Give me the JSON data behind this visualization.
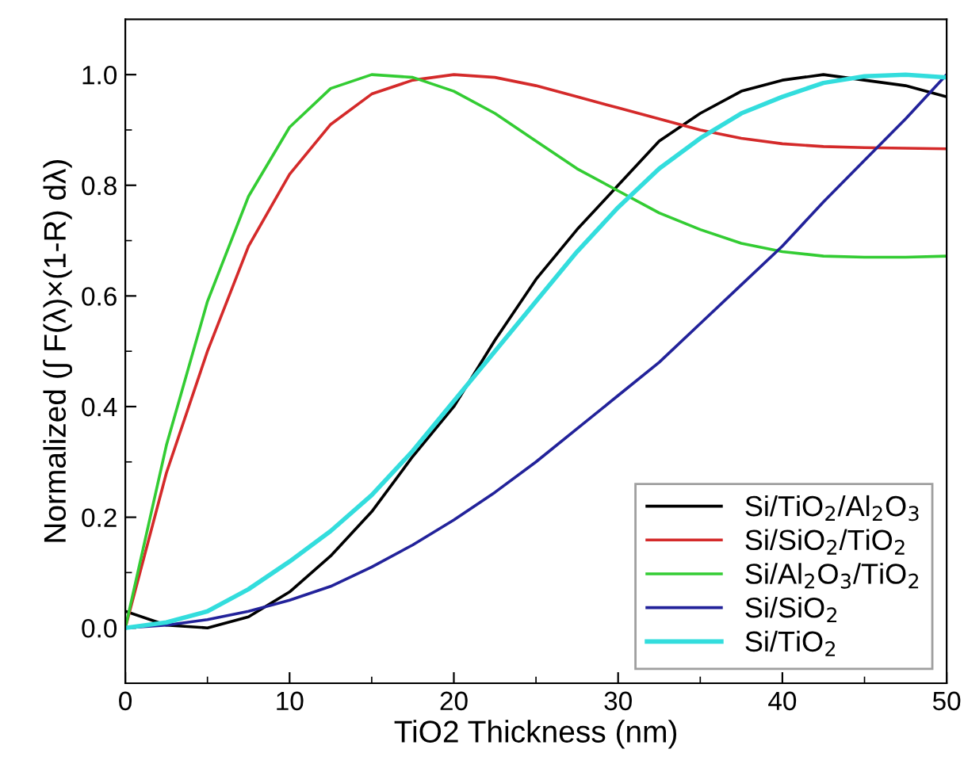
{
  "chart_data": {
    "type": "line",
    "xlabel": "TiO2 Thickness (nm)",
    "ylabel": "Normalized (∫ F(λ)×(1-R) dλ)",
    "x": [
      0,
      2.5,
      5,
      7.5,
      10,
      12.5,
      15,
      17.5,
      20,
      22.5,
      25,
      27.5,
      30,
      32.5,
      35,
      37.5,
      40,
      42.5,
      45,
      47.5,
      50
    ],
    "series": [
      {
        "name": "Si/TiO$_{2}$/Al$_{2}$O$_{3}$",
        "color": "#000000",
        "values": [
          0.03,
          0.005,
          0.0,
          0.02,
          0.065,
          0.13,
          0.21,
          0.31,
          0.4,
          0.52,
          0.63,
          0.72,
          0.8,
          0.88,
          0.93,
          0.97,
          0.99,
          1.0,
          0.99,
          0.98,
          0.96
        ]
      },
      {
        "name": "Si/SiO$_{2}$/TiO$_{2}$",
        "color": "#d42a2a",
        "values": [
          0.0,
          0.28,
          0.5,
          0.69,
          0.82,
          0.91,
          0.965,
          0.99,
          1.0,
          0.995,
          0.98,
          0.96,
          0.94,
          0.92,
          0.9,
          0.885,
          0.875,
          0.87,
          0.868,
          0.867,
          0.866
        ]
      },
      {
        "name": "Si/Al$_{2}$O$_{3}$/TiO$_{2}$",
        "color": "#33cc33",
        "values": [
          0.0,
          0.33,
          0.59,
          0.78,
          0.905,
          0.975,
          1.0,
          0.995,
          0.97,
          0.93,
          0.88,
          0.83,
          0.79,
          0.75,
          0.72,
          0.695,
          0.68,
          0.672,
          0.67,
          0.67,
          0.672
        ]
      },
      {
        "name": "Si/SiO$_{2}$",
        "color": "#22229a",
        "values": [
          0.0,
          0.005,
          0.015,
          0.03,
          0.05,
          0.075,
          0.11,
          0.15,
          0.195,
          0.245,
          0.3,
          0.36,
          0.42,
          0.48,
          0.55,
          0.62,
          0.69,
          0.77,
          0.845,
          0.92,
          1.0
        ]
      },
      {
        "name": "Si/TiO$_{2}$",
        "color": "#33dddd",
        "values": [
          0.0,
          0.01,
          0.03,
          0.07,
          0.12,
          0.175,
          0.24,
          0.32,
          0.41,
          0.5,
          0.59,
          0.68,
          0.76,
          0.83,
          0.885,
          0.93,
          0.96,
          0.985,
          0.997,
          1.0,
          0.995
        ]
      }
    ],
    "xlim": [
      0,
      50
    ],
    "ylim": [
      -0.1,
      1.1
    ],
    "xticks": [
      0,
      {
        "value": 5,
        "label": null
      },
      10,
      {
        "value": 15,
        "label": null
      },
      20,
      {
        "value": 25,
        "label": null
      },
      30,
      {
        "value": 35,
        "label": null
      },
      40,
      {
        "value": 45,
        "label": null
      },
      50
    ],
    "yticks": [
      {
        "value": 0,
        "label": "0.0"
      },
      {
        "value": 0.1,
        "label": null
      },
      {
        "value": 0.2,
        "label": "0.2"
      },
      {
        "value": 0.3,
        "label": null
      },
      {
        "value": 0.4,
        "label": "0.4"
      },
      {
        "value": 0.5,
        "label": null
      },
      {
        "value": 0.6,
        "label": "0.6"
      },
      {
        "value": 0.7,
        "label": null
      },
      {
        "value": 0.8,
        "label": "0.8"
      },
      {
        "value": 0.9,
        "label": null
      },
      {
        "value": 1.0,
        "label": "1.0"
      }
    ],
    "legend": "lower right",
    "grid": false,
    "marker": "none",
    "line_style": "solid"
  }
}
